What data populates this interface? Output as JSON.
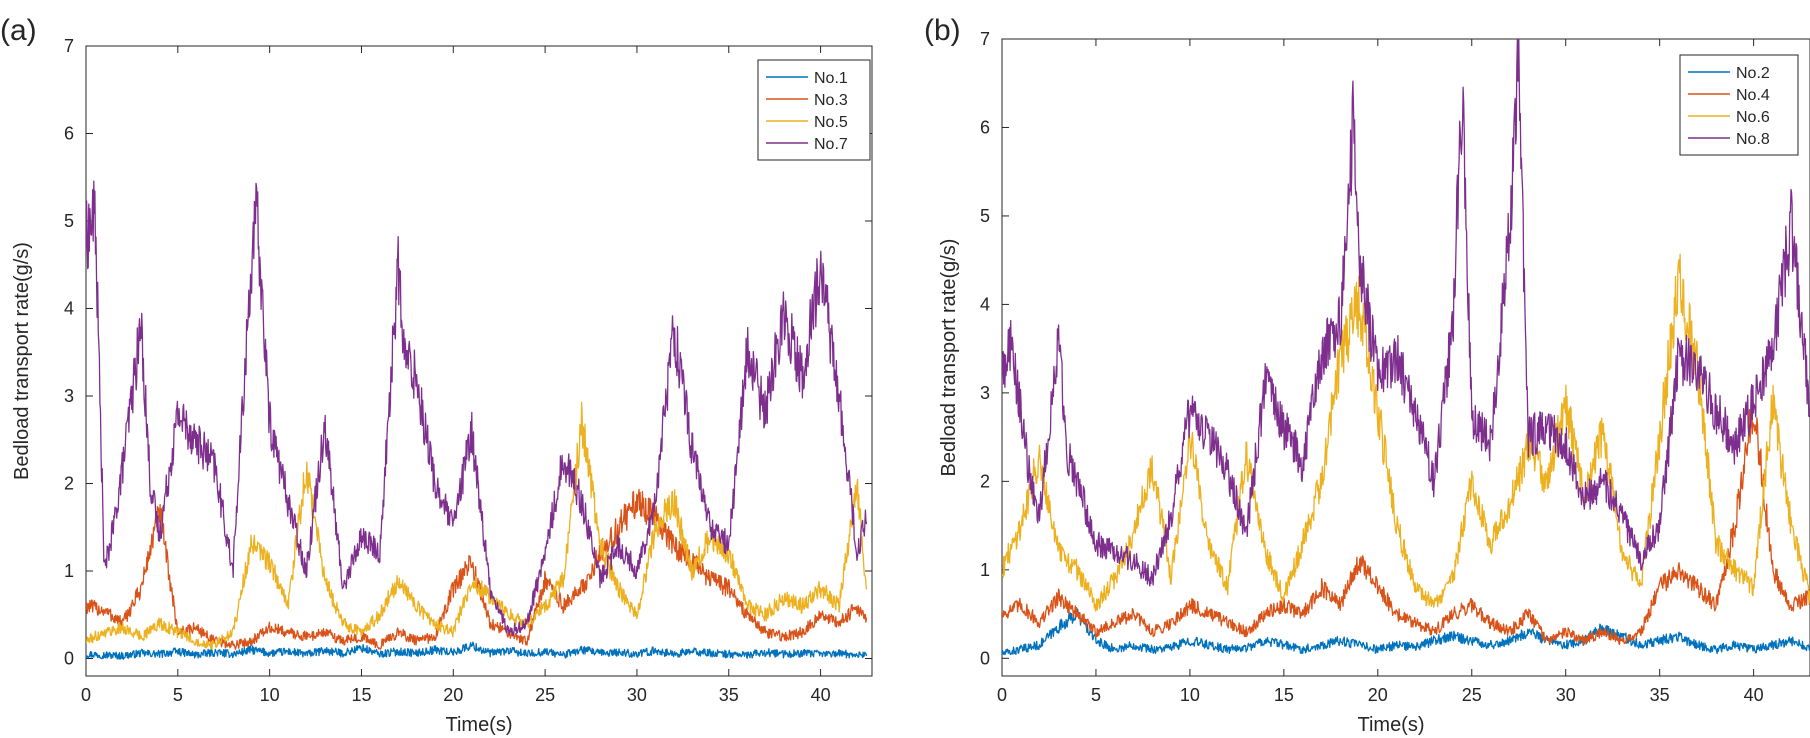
{
  "chart_data": [
    {
      "type": "line",
      "panel_label": "(a)",
      "xlabel": "Time(s)",
      "ylabel": "Bedload transport rate(g/s)",
      "xlim": [
        0,
        42.8
      ],
      "ylim": [
        -0.2,
        7
      ],
      "xticks": [
        0,
        5,
        10,
        15,
        20,
        25,
        30,
        35,
        40
      ],
      "yticks": [
        0,
        1,
        2,
        3,
        4,
        5,
        6,
        7
      ],
      "grid": false,
      "legend_position": "top-right",
      "series": [
        {
          "name": "No.1",
          "color": "#0072BD",
          "x": [
            0,
            1,
            2,
            3,
            4,
            5,
            6,
            7,
            8,
            9,
            10,
            11,
            12,
            13,
            14,
            15,
            16,
            17,
            18,
            19,
            20,
            21,
            22,
            23,
            24,
            25,
            26,
            27,
            28,
            29,
            30,
            31,
            32,
            33,
            34,
            35,
            36,
            37,
            38,
            39,
            40,
            41,
            42,
            42.5
          ],
          "y": [
            0.05,
            0.04,
            0.03,
            0.06,
            0.05,
            0.08,
            0.04,
            0.07,
            0.05,
            0.1,
            0.06,
            0.08,
            0.05,
            0.09,
            0.06,
            0.12,
            0.05,
            0.08,
            0.06,
            0.1,
            0.07,
            0.15,
            0.06,
            0.09,
            0.05,
            0.08,
            0.04,
            0.1,
            0.06,
            0.07,
            0.05,
            0.09,
            0.05,
            0.08,
            0.06,
            0.05,
            0.04,
            0.07,
            0.05,
            0.06,
            0.05,
            0.06,
            0.04,
            0.05
          ]
        },
        {
          "name": "No.3",
          "color": "#D95319",
          "x": [
            0,
            1,
            2,
            3,
            4,
            5,
            6,
            7,
            8,
            9,
            10,
            11,
            12,
            13,
            14,
            15,
            16,
            17,
            18,
            19,
            20,
            21,
            22,
            23,
            24,
            25,
            26,
            27,
            28,
            29,
            30,
            31,
            32,
            33,
            34,
            35,
            36,
            37,
            38,
            39,
            40,
            41,
            42,
            42.5
          ],
          "y": [
            0.6,
            0.55,
            0.4,
            0.8,
            1.7,
            0.3,
            0.35,
            0.2,
            0.15,
            0.2,
            0.35,
            0.3,
            0.25,
            0.3,
            0.2,
            0.25,
            0.15,
            0.3,
            0.2,
            0.25,
            0.8,
            1.1,
            0.4,
            0.3,
            0.2,
            0.9,
            0.6,
            0.8,
            1.2,
            1.5,
            1.8,
            1.6,
            1.3,
            1.1,
            0.9,
            0.8,
            0.5,
            0.3,
            0.25,
            0.3,
            0.5,
            0.4,
            0.6,
            0.45
          ]
        },
        {
          "name": "No.5",
          "color": "#EDB120",
          "x": [
            0,
            1,
            2,
            3,
            4,
            5,
            6,
            7,
            8,
            9,
            10,
            11,
            12,
            13,
            14,
            15,
            16,
            17,
            18,
            19,
            20,
            21,
            22,
            23,
            24,
            25,
            26,
            27,
            28,
            29,
            30,
            31,
            32,
            33,
            34,
            35,
            36,
            37,
            38,
            39,
            40,
            41,
            42,
            42.5
          ],
          "y": [
            0.2,
            0.3,
            0.35,
            0.25,
            0.4,
            0.3,
            0.2,
            0.15,
            0.3,
            1.3,
            1.1,
            0.6,
            2.2,
            0.9,
            0.4,
            0.3,
            0.5,
            0.9,
            0.6,
            0.4,
            0.3,
            0.9,
            0.7,
            0.5,
            0.4,
            0.6,
            0.9,
            2.7,
            1.3,
            0.8,
            0.5,
            1.5,
            1.8,
            1.0,
            1.4,
            1.2,
            0.6,
            0.5,
            0.7,
            0.6,
            0.8,
            0.6,
            2.0,
            0.7
          ]
        },
        {
          "name": "No.7",
          "color": "#7E2F8E",
          "x": [
            0,
            0.5,
            1,
            1.5,
            2,
            3,
            3.5,
            4,
            5,
            6,
            7,
            8,
            9,
            9.3,
            10,
            11,
            12,
            13,
            14,
            15,
            16,
            17,
            17.3,
            18,
            19,
            20,
            21,
            22,
            23,
            24,
            25,
            26,
            27,
            28,
            29,
            30,
            31,
            32,
            33,
            34,
            35,
            36,
            37,
            38,
            39,
            40,
            41,
            42,
            42.5
          ],
          "y": [
            4.8,
            5.1,
            1.0,
            1.5,
            2.2,
            3.8,
            2.0,
            1.4,
            2.8,
            2.5,
            2.2,
            1.0,
            4.5,
            5.1,
            2.7,
            1.8,
            1.0,
            2.7,
            0.8,
            1.4,
            1.2,
            4.5,
            3.5,
            3.2,
            2.0,
            1.5,
            2.6,
            0.8,
            0.3,
            0.4,
            1.2,
            2.3,
            1.8,
            0.9,
            1.3,
            1.0,
            1.8,
            3.8,
            2.4,
            1.5,
            1.3,
            3.5,
            2.8,
            4.0,
            3.2,
            4.5,
            3.0,
            1.2,
            1.6
          ]
        }
      ]
    },
    {
      "type": "line",
      "panel_label": "(b)",
      "xlabel": "Time(s)",
      "ylabel": "Bedload transport rate(g/s)",
      "xlim": [
        0,
        43
      ],
      "ylim": [
        -0.2,
        7
      ],
      "xticks": [
        0,
        5,
        10,
        15,
        20,
        25,
        30,
        35,
        40
      ],
      "yticks": [
        0,
        1,
        2,
        3,
        4,
        5,
        6,
        7
      ],
      "grid": false,
      "legend_position": "top-right",
      "series": [
        {
          "name": "No.2",
          "color": "#0072BD",
          "x": [
            0,
            1,
            2,
            3,
            4,
            5,
            6,
            7,
            8,
            9,
            10,
            11,
            12,
            13,
            14,
            15,
            16,
            17,
            18,
            19,
            20,
            21,
            22,
            23,
            24,
            25,
            26,
            27,
            28,
            29,
            30,
            31,
            32,
            33,
            34,
            35,
            36,
            37,
            38,
            39,
            40,
            41,
            42,
            43
          ],
          "y": [
            0.05,
            0.1,
            0.15,
            0.35,
            0.5,
            0.2,
            0.1,
            0.15,
            0.1,
            0.12,
            0.2,
            0.15,
            0.1,
            0.12,
            0.2,
            0.15,
            0.1,
            0.15,
            0.2,
            0.15,
            0.1,
            0.15,
            0.12,
            0.2,
            0.25,
            0.2,
            0.15,
            0.2,
            0.3,
            0.2,
            0.15,
            0.2,
            0.35,
            0.25,
            0.15,
            0.2,
            0.25,
            0.15,
            0.1,
            0.15,
            0.1,
            0.15,
            0.2,
            0.1
          ]
        },
        {
          "name": "No.4",
          "color": "#D95319",
          "x": [
            0,
            1,
            2,
            3,
            4,
            5,
            6,
            7,
            8,
            9,
            10,
            11,
            12,
            13,
            14,
            15,
            16,
            17,
            18,
            19,
            20,
            21,
            22,
            23,
            24,
            25,
            26,
            27,
            28,
            29,
            30,
            31,
            32,
            33,
            34,
            35,
            36,
            37,
            38,
            39,
            40,
            41,
            42,
            43
          ],
          "y": [
            0.5,
            0.6,
            0.4,
            0.7,
            0.5,
            0.3,
            0.4,
            0.5,
            0.3,
            0.4,
            0.6,
            0.5,
            0.4,
            0.3,
            0.5,
            0.6,
            0.5,
            0.8,
            0.6,
            1.1,
            0.8,
            0.5,
            0.4,
            0.3,
            0.5,
            0.6,
            0.4,
            0.3,
            0.5,
            0.2,
            0.3,
            0.2,
            0.3,
            0.2,
            0.3,
            0.8,
            1.0,
            0.8,
            0.6,
            1.5,
            2.9,
            1.0,
            0.6,
            0.7
          ]
        },
        {
          "name": "No.6",
          "color": "#EDB120",
          "x": [
            0,
            1,
            2,
            3,
            4,
            5,
            6,
            7,
            8,
            9,
            10,
            11,
            12,
            13,
            14,
            15,
            16,
            17,
            18,
            19,
            20,
            21,
            22,
            23,
            24,
            25,
            26,
            27,
            28,
            29,
            30,
            31,
            32,
            33,
            34,
            35,
            36,
            37,
            38,
            39,
            40,
            41,
            42,
            43
          ],
          "y": [
            1.0,
            1.5,
            2.3,
            1.2,
            1.0,
            0.6,
            0.9,
            1.4,
            2.2,
            0.9,
            2.5,
            1.3,
            0.8,
            2.3,
            1.2,
            0.7,
            1.3,
            2.0,
            3.4,
            4.0,
            2.8,
            1.5,
            0.8,
            0.6,
            0.9,
            2.0,
            1.3,
            1.7,
            2.4,
            2.0,
            2.9,
            1.8,
            2.6,
            1.2,
            0.8,
            2.5,
            4.3,
            3.3,
            1.3,
            1.0,
            0.8,
            2.9,
            1.5,
            0.7
          ]
        },
        {
          "name": "No.8",
          "color": "#7E2F8E",
          "x": [
            0,
            0.4,
            1,
            1.5,
            2,
            3,
            3.5,
            4,
            5,
            6,
            7,
            8,
            9,
            10,
            11,
            12,
            13,
            14,
            15,
            16,
            17,
            18,
            18.7,
            19,
            20,
            21,
            22,
            23,
            24,
            24.5,
            25,
            26,
            27,
            27.5,
            28,
            29,
            30,
            31,
            32,
            33,
            34,
            35,
            36,
            37,
            38,
            39,
            40,
            41,
            42,
            43
          ],
          "y": [
            3.2,
            3.6,
            2.8,
            2.0,
            1.6,
            3.6,
            2.3,
            2.0,
            1.3,
            1.2,
            1.1,
            0.9,
            1.6,
            2.8,
            2.5,
            2.1,
            1.4,
            3.1,
            2.6,
            2.2,
            3.4,
            3.8,
            6.1,
            4.5,
            3.2,
            3.4,
            2.8,
            2.0,
            3.8,
            6.5,
            2.7,
            2.4,
            4.8,
            6.8,
            2.5,
            2.6,
            2.4,
            1.8,
            2.0,
            1.6,
            1.1,
            1.5,
            3.4,
            3.3,
            2.8,
            2.4,
            2.9,
            3.5,
            4.9,
            2.8
          ]
        }
      ]
    }
  ]
}
